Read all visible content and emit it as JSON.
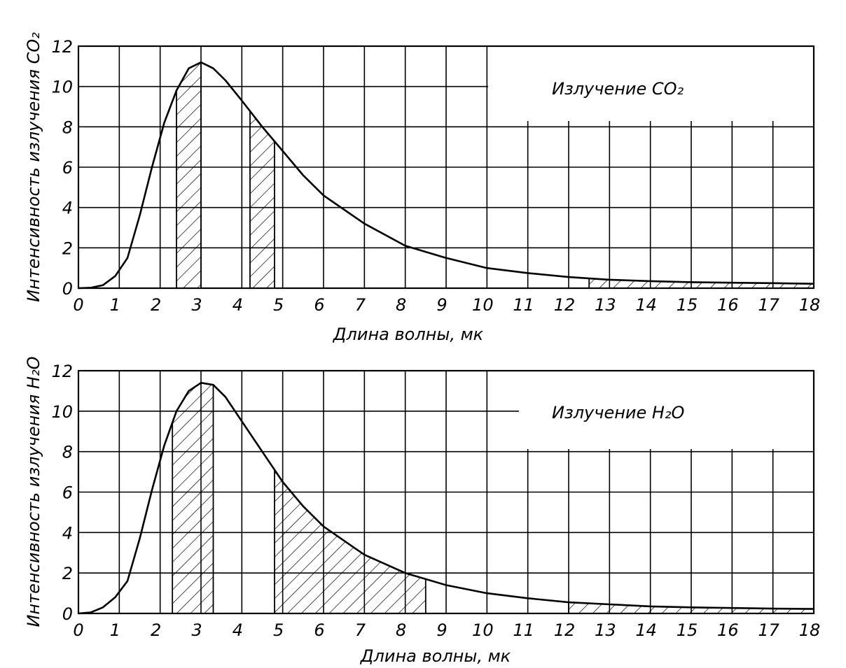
{
  "colors": {
    "ink": "#000000",
    "paper": "#ffffff"
  },
  "chart_data": [
    {
      "type": "area",
      "annotation": "Излучение CO₂",
      "xlabel": "Длина волны, мк",
      "ylabel": "Интенсивность излучения CO₂",
      "xlim": [
        0,
        18
      ],
      "ylim": [
        0,
        12
      ],
      "x_ticks": [
        "0",
        "1",
        "2",
        "3",
        "4",
        "5",
        "6",
        "7",
        "8",
        "9",
        "10",
        "11",
        "12",
        "13",
        "14",
        "15",
        "16",
        "17",
        "18"
      ],
      "y_ticks": [
        "0",
        "2",
        "4",
        "6",
        "8",
        "10",
        "12"
      ],
      "grid": true,
      "x": [
        0,
        0.3,
        0.6,
        0.9,
        1.2,
        1.5,
        1.8,
        2.1,
        2.4,
        2.7,
        3.0,
        3.3,
        3.6,
        4.0,
        4.5,
        5.0,
        5.5,
        6.0,
        7.0,
        8.0,
        9.0,
        10.0,
        11.0,
        12.0,
        13.0,
        14.0,
        15.0,
        16.0,
        17.0,
        18.0
      ],
      "y": [
        0,
        0.02,
        0.15,
        0.6,
        1.5,
        3.6,
        6.0,
        8.2,
        9.8,
        10.9,
        11.2,
        10.9,
        10.3,
        9.3,
        8.0,
        6.8,
        5.6,
        4.6,
        3.2,
        2.1,
        1.5,
        1.0,
        0.75,
        0.55,
        0.42,
        0.35,
        0.3,
        0.27,
        0.25,
        0.22
      ],
      "absorption_bands_um": [
        [
          2.4,
          3.0
        ],
        [
          4.2,
          4.8
        ],
        [
          12.5,
          18.0
        ]
      ]
    },
    {
      "type": "area",
      "annotation": "Излучение H₂O",
      "xlabel": "Длина волны, мк",
      "ylabel": "Интенсивность излучения H₂O",
      "xlim": [
        0,
        18
      ],
      "ylim": [
        0,
        12
      ],
      "x_ticks": [
        "0",
        "1",
        "2",
        "3",
        "4",
        "5",
        "6",
        "7",
        "8",
        "9",
        "10",
        "11",
        "12",
        "13",
        "14",
        "15",
        "16",
        "17",
        "18"
      ],
      "y_ticks": [
        "0",
        "2",
        "4",
        "6",
        "8",
        "10",
        "12"
      ],
      "grid": true,
      "x": [
        0,
        0.3,
        0.6,
        0.9,
        1.2,
        1.5,
        1.8,
        2.1,
        2.4,
        2.7,
        3.0,
        3.3,
        3.6,
        4.0,
        4.5,
        5.0,
        5.5,
        6.0,
        7.0,
        8.0,
        9.0,
        10.0,
        11.0,
        12.0,
        13.0,
        14.0,
        15.0,
        16.0,
        17.0,
        18.0
      ],
      "y": [
        0,
        0.05,
        0.3,
        0.8,
        1.6,
        3.7,
        6.1,
        8.3,
        10.0,
        11.0,
        11.4,
        11.3,
        10.7,
        9.5,
        8.0,
        6.5,
        5.3,
        4.3,
        2.9,
        2.0,
        1.4,
        1.0,
        0.75,
        0.55,
        0.45,
        0.35,
        0.3,
        0.27,
        0.24,
        0.22
      ],
      "absorption_bands_um": [
        [
          2.3,
          3.3
        ],
        [
          4.8,
          8.5
        ],
        [
          12.0,
          18.0
        ]
      ]
    }
  ]
}
